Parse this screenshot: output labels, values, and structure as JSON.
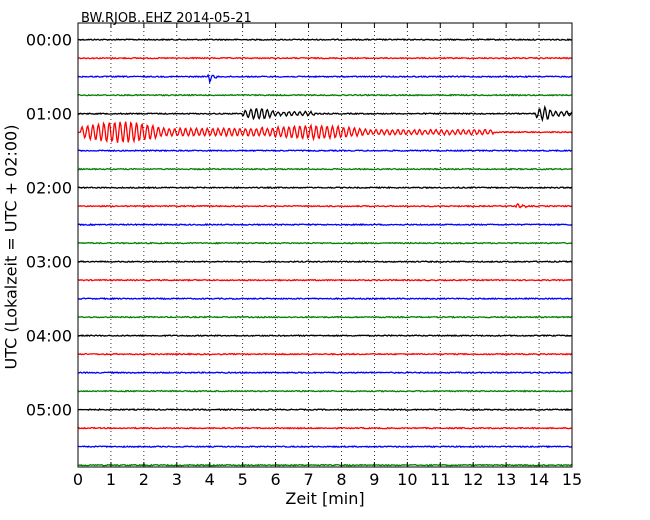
{
  "chart_data": {
    "type": "line",
    "title": "BW.RJOB..EHZ 2014-05-21",
    "xlabel": "Zeit  [min]",
    "ylabel": "UTC (Lokalzeit = UTC + 02:00)",
    "xlim": [
      0,
      15
    ],
    "x_ticks": [
      0,
      1,
      2,
      3,
      4,
      5,
      6,
      7,
      8,
      9,
      10,
      11,
      12,
      13,
      14,
      15
    ],
    "y_tick_labels": [
      "00:00",
      "01:00",
      "02:00",
      "03:00",
      "04:00",
      "05:00"
    ],
    "grid": true,
    "trace_interval_minutes": 15,
    "trace_colors": [
      "#000000",
      "#ff0000",
      "#0000ff",
      "#008000"
    ],
    "series": [
      {
        "start": "00:00",
        "events": []
      },
      {
        "start": "00:15",
        "events": []
      },
      {
        "start": "00:30",
        "events": [
          {
            "x": 3.95,
            "amplitude": 0.28,
            "duration": 0.25
          }
        ]
      },
      {
        "start": "00:45",
        "events": []
      },
      {
        "start": "01:00",
        "events": [
          {
            "x": 5.0,
            "amplitude": 0.28,
            "duration": 2.2
          },
          {
            "x": 13.9,
            "amplitude": 0.35,
            "duration": 1.1
          }
        ]
      },
      {
        "start": "01:15",
        "events": [
          {
            "x": 0.1,
            "amplitude": 0.55,
            "duration": 5.5
          },
          {
            "x": 5.6,
            "amplitude": 0.35,
            "duration": 7.0
          }
        ]
      },
      {
        "start": "01:30",
        "events": []
      },
      {
        "start": "01:45",
        "events": []
      },
      {
        "start": "02:00",
        "events": []
      },
      {
        "start": "02:15",
        "events": [
          {
            "x": 13.3,
            "amplitude": 0.15,
            "duration": 0.3
          }
        ]
      },
      {
        "start": "02:30",
        "events": []
      },
      {
        "start": "02:45",
        "events": []
      },
      {
        "start": "03:00",
        "events": []
      },
      {
        "start": "03:15",
        "events": []
      },
      {
        "start": "03:30",
        "events": []
      },
      {
        "start": "03:45",
        "events": []
      },
      {
        "start": "04:00",
        "events": []
      },
      {
        "start": "04:15",
        "events": []
      },
      {
        "start": "04:30",
        "events": []
      },
      {
        "start": "04:45",
        "events": []
      },
      {
        "start": "05:00",
        "events": []
      },
      {
        "start": "05:15",
        "events": []
      },
      {
        "start": "05:30",
        "events": []
      },
      {
        "start": "05:45",
        "events": []
      }
    ]
  }
}
